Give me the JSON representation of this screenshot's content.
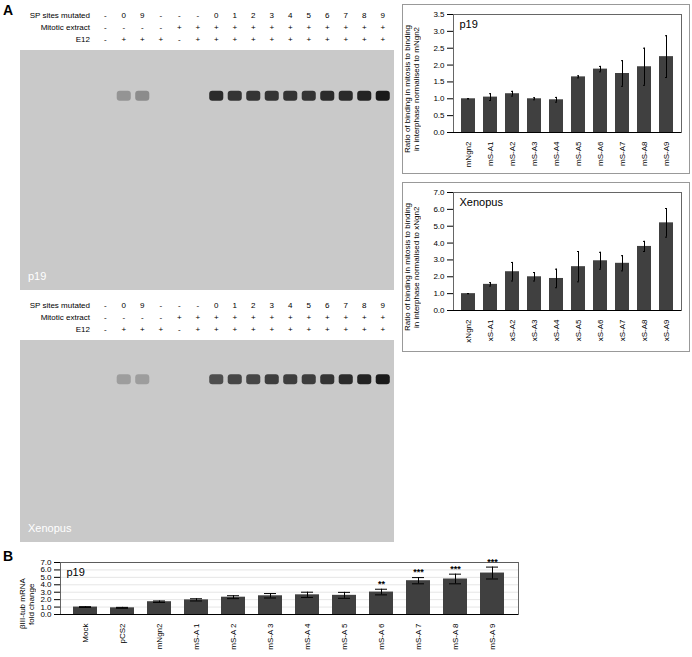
{
  "panel_labels": [
    "A",
    "B"
  ],
  "gels": [
    {
      "title": "p19",
      "rows": [
        {
          "label": "SP sites mutated",
          "values": [
            "-",
            "0",
            "9",
            "-",
            "-",
            "-",
            "0",
            "1",
            "2",
            "3",
            "4",
            "5",
            "6",
            "7",
            "8",
            "9"
          ]
        },
        {
          "label": "Mitotic extract",
          "values": [
            "-",
            "-",
            "-",
            "-",
            "+",
            "+",
            "+",
            "+",
            "+",
            "+",
            "+",
            "+",
            "+",
            "+",
            "+",
            "+"
          ]
        },
        {
          "label": "E12",
          "values": [
            "-",
            "+",
            "+",
            "+",
            "-",
            "+",
            "+",
            "+",
            "+",
            "+",
            "+",
            "+",
            "+",
            "+",
            "+",
            "+"
          ]
        }
      ],
      "signal": [
        0,
        0.3,
        0.35,
        0,
        0,
        0,
        0.9,
        0.85,
        0.85,
        0.85,
        0.85,
        0.85,
        0.9,
        0.9,
        0.95,
        1
      ]
    },
    {
      "title": "Xenopus",
      "rows": [
        {
          "label": "SP sites mutated",
          "values": [
            "-",
            "0",
            "9",
            "-",
            "-",
            "-",
            "0",
            "1",
            "2",
            "3",
            "4",
            "5",
            "6",
            "7",
            "8",
            "9"
          ]
        },
        {
          "label": "Mitotic extract",
          "values": [
            "-",
            "-",
            "-",
            "-",
            "+",
            "+",
            "+",
            "+",
            "+",
            "+",
            "+",
            "+",
            "+",
            "+",
            "+",
            "+"
          ]
        },
        {
          "label": "E12",
          "values": [
            "-",
            "+",
            "+",
            "+",
            "-",
            "+",
            "+",
            "+",
            "+",
            "+",
            "+",
            "+",
            "+",
            "+",
            "+",
            "+"
          ]
        }
      ],
      "signal": [
        0,
        0.25,
        0.25,
        0,
        0,
        0,
        0.7,
        0.75,
        0.75,
        0.8,
        0.8,
        0.8,
        0.85,
        0.9,
        0.95,
        1
      ]
    }
  ],
  "chart_data": [
    {
      "type": "bar",
      "title": "p19",
      "y_label": "Ratio of binding in mitosis to binding in interphase normalised to mNgn2",
      "categories": [
        "mNgn2",
        "mS-A1",
        "mS-A2",
        "mS-A3",
        "mS-A4",
        "mS-A5",
        "mS-A6",
        "mS-A7",
        "mS-A8",
        "mS-A9"
      ],
      "values": [
        1,
        1.05,
        1.15,
        1.0,
        0.97,
        1.65,
        1.88,
        1.75,
        1.95,
        2.25
      ],
      "errors": [
        0,
        0.1,
        0.07,
        0.03,
        0.07,
        0.03,
        0.08,
        0.38,
        0.55,
        0.62
      ],
      "color": "#404040",
      "ylim": [
        0,
        3.5
      ],
      "yticks": [
        0,
        0.5,
        1,
        1.5,
        2,
        2.5,
        3,
        3.5
      ],
      "grid": false
    },
    {
      "type": "bar",
      "title": "Xenopus",
      "y_label": "Ratio of binding in mitosis to binding in interphase normalised to xNgn2",
      "categories": [
        "xNgn2",
        "xS-A1",
        "xS-A2",
        "xS-A3",
        "xS-A4",
        "xS-A5",
        "xS-A6",
        "xS-A7",
        "xS-A8",
        "xS-A9"
      ],
      "values": [
        1,
        1.55,
        2.3,
        2.0,
        1.9,
        2.6,
        2.95,
        2.8,
        3.8,
        5.2
      ],
      "errors": [
        0,
        0.1,
        0.55,
        0.25,
        0.55,
        0.9,
        0.5,
        0.45,
        0.3,
        0.85
      ],
      "color": "#404040",
      "ylim": [
        0,
        7
      ],
      "yticks": [
        0,
        1,
        2,
        3,
        4,
        5,
        6,
        7
      ],
      "grid": false
    },
    {
      "type": "bar",
      "title": "p19",
      "y_label": "βIII-tub mRNA fold change",
      "categories": [
        "Mock",
        "pCS2",
        "mNgn2",
        "mS-A 1",
        "mS-A 2",
        "mS-A 3",
        "mS-A 4",
        "mS-A 5",
        "mS-A 6",
        "mS-A 7",
        "mS-A 8",
        "mS-A 9"
      ],
      "values": [
        1.0,
        0.9,
        1.72,
        1.97,
        2.33,
        2.52,
        2.65,
        2.58,
        3.02,
        4.55,
        4.78,
        5.58
      ],
      "errors": [
        0.05,
        0.06,
        0.1,
        0.15,
        0.2,
        0.3,
        0.35,
        0.4,
        0.38,
        0.42,
        0.65,
        0.8
      ],
      "annotations": [
        {
          "category": "mS-A 6",
          "text": "**"
        },
        {
          "category": "mS-A 7",
          "text": "***"
        },
        {
          "category": "mS-A 8",
          "text": "***"
        },
        {
          "category": "mS-A 9",
          "text": "***"
        }
      ],
      "color": "#404040",
      "ylim": [
        0,
        7
      ],
      "yticks": [
        0,
        1,
        2,
        3,
        4,
        5,
        6,
        7
      ],
      "grid": true
    }
  ]
}
